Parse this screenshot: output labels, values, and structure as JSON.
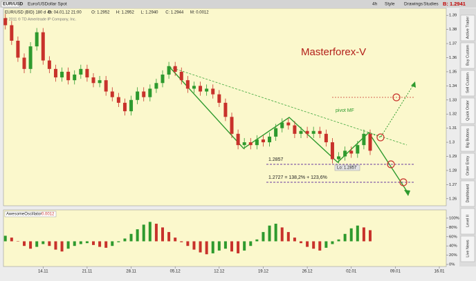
{
  "toolbar": {
    "symbol": "EUR/USD",
    "description": "Euro/USDollar Spot",
    "period": "4h",
    "buttons": [
      "Style",
      "Drawings",
      "Studies"
    ],
    "bid": "B: 1.2941"
  },
  "header": {
    "study": "EUR/USD (BID) 180 d 4h",
    "fields": [
      "D: 04.01.12 21:00",
      "O: 1.2952",
      "H: 1.2952",
      "L: 1.2940",
      "C: 1.2944",
      "M: 0.0012"
    ]
  },
  "copyright": "© 2011 © TD Ameritrade IP Company, Inc.",
  "side_tabs": [
    "Active Trader",
    "Buy Custom",
    "Sell Custom",
    "Quick Order",
    "Big Buttons",
    "Order Entry",
    "Dashboard",
    "Level II",
    "Live News"
  ],
  "chart_data": [
    {
      "type": "candlestick",
      "up_color": "#2e9a2e",
      "down_color": "#c8322b",
      "x": [
        -6,
        -5,
        -4,
        -3,
        -2,
        -1,
        0,
        1,
        2,
        3,
        4,
        5,
        6,
        7,
        8,
        9,
        10,
        11,
        12,
        13,
        14,
        15,
        16,
        17,
        18,
        19,
        20,
        21,
        22,
        23,
        24,
        25,
        26,
        27,
        28,
        29,
        30,
        31,
        32,
        33,
        34,
        35,
        36,
        37,
        38,
        39,
        40,
        41,
        42,
        43,
        44,
        45,
        46,
        47,
        48,
        49,
        50,
        51,
        52
      ],
      "open": [
        1.388,
        1.383,
        1.372,
        1.36,
        1.352,
        1.368,
        1.378,
        1.358,
        1.352,
        1.346,
        1.35,
        1.344,
        1.348,
        1.352,
        1.346,
        1.342,
        1.344,
        1.336,
        1.332,
        1.328,
        1.322,
        1.33,
        1.336,
        1.332,
        1.338,
        1.342,
        1.348,
        1.354,
        1.35,
        1.344,
        1.338,
        1.34,
        1.336,
        1.338,
        1.334,
        1.328,
        1.318,
        1.306,
        1.298,
        1.3,
        1.298,
        1.302,
        1.3,
        1.304,
        1.31,
        1.314,
        1.312,
        1.306,
        1.308,
        1.306,
        1.308,
        1.306,
        1.3,
        1.288,
        1.29,
        1.294,
        1.292,
        1.298,
        1.306
      ],
      "high": [
        1.391,
        1.386,
        1.375,
        1.363,
        1.371,
        1.381,
        1.381,
        1.361,
        1.355,
        1.353,
        1.353,
        1.351,
        1.355,
        1.355,
        1.349,
        1.347,
        1.347,
        1.339,
        1.335,
        1.331,
        1.333,
        1.339,
        1.339,
        1.341,
        1.345,
        1.351,
        1.357,
        1.357,
        1.353,
        1.347,
        1.343,
        1.343,
        1.341,
        1.341,
        1.337,
        1.331,
        1.321,
        1.309,
        1.303,
        1.303,
        1.305,
        1.305,
        1.307,
        1.313,
        1.317,
        1.317,
        1.315,
        1.311,
        1.311,
        1.311,
        1.311,
        1.309,
        1.303,
        1.293,
        1.297,
        1.297,
        1.301,
        1.309,
        1.309
      ],
      "low": [
        1.38,
        1.369,
        1.357,
        1.349,
        1.349,
        1.365,
        1.355,
        1.349,
        1.343,
        1.343,
        1.341,
        1.341,
        1.345,
        1.343,
        1.339,
        1.339,
        1.333,
        1.329,
        1.325,
        1.319,
        1.319,
        1.327,
        1.329,
        1.329,
        1.335,
        1.339,
        1.345,
        1.347,
        1.341,
        1.335,
        1.335,
        1.333,
        1.333,
        1.331,
        1.325,
        1.315,
        1.303,
        1.295,
        1.295,
        1.295,
        1.295,
        1.297,
        1.297,
        1.301,
        1.307,
        1.309,
        1.303,
        1.303,
        1.303,
        1.303,
        1.303,
        1.297,
        1.285,
        1.285,
        1.287,
        1.289,
        1.289,
        1.295,
        1.291
      ],
      "close": [
        1.383,
        1.372,
        1.36,
        1.352,
        1.368,
        1.378,
        1.358,
        1.352,
        1.346,
        1.35,
        1.344,
        1.348,
        1.352,
        1.346,
        1.342,
        1.344,
        1.336,
        1.332,
        1.328,
        1.322,
        1.33,
        1.336,
        1.332,
        1.338,
        1.342,
        1.348,
        1.354,
        1.35,
        1.344,
        1.338,
        1.34,
        1.336,
        1.338,
        1.334,
        1.328,
        1.318,
        1.306,
        1.298,
        1.3,
        1.298,
        1.302,
        1.3,
        1.304,
        1.31,
        1.314,
        1.312,
        1.306,
        1.308,
        1.306,
        1.308,
        1.306,
        1.3,
        1.288,
        1.29,
        1.294,
        1.292,
        1.298,
        1.306,
        1.294
      ],
      "xlim": [
        -6.3,
        64.1
      ],
      "xticks": [
        {
          "value": 0,
          "label": "14.11"
        },
        {
          "value": 7,
          "label": "21.11"
        },
        {
          "value": 14,
          "label": "28.11"
        },
        {
          "value": 21,
          "label": "05.12"
        },
        {
          "value": 28,
          "label": "12.12"
        },
        {
          "value": 35,
          "label": "19.12"
        },
        {
          "value": 42,
          "label": "26.12"
        },
        {
          "value": 49,
          "label": "02.01"
        },
        {
          "value": 56,
          "label": "09.01"
        },
        {
          "value": 63,
          "label": "16.01"
        }
      ],
      "ylim": [
        1.255,
        1.395
      ],
      "yticks": [
        1.26,
        1.27,
        1.28,
        1.29,
        1.3,
        1.31,
        1.32,
        1.33,
        1.34,
        1.35,
        1.36,
        1.37,
        1.38,
        1.39
      ],
      "annotations": [
        "Masterforex-V",
        "pivot MF",
        "1.2857",
        "1.2727 = 138,2% + 123,6%",
        "Lo: 1.2857"
      ]
    },
    {
      "type": "bar",
      "title": "AwesomeOscillator",
      "subtitle": "0.0012",
      "up_color": "#2e9a2e",
      "down_color": "#c8322b",
      "x": [
        -6,
        -5,
        -4,
        -3,
        -2,
        -1,
        0,
        1,
        2,
        3,
        4,
        5,
        6,
        7,
        8,
        9,
        10,
        11,
        12,
        13,
        14,
        15,
        16,
        17,
        18,
        19,
        20,
        21,
        22,
        23,
        24,
        25,
        26,
        27,
        28,
        29,
        30,
        31,
        32,
        33,
        34,
        35,
        36,
        37,
        38,
        39,
        40,
        41,
        42,
        43,
        44,
        45,
        46,
        47,
        48,
        49,
        50,
        51,
        52
      ],
      "values": [
        62,
        58,
        50,
        40,
        34,
        38,
        44,
        40,
        32,
        28,
        34,
        40,
        44,
        46,
        42,
        38,
        36,
        40,
        48,
        56,
        66,
        76,
        86,
        92,
        88,
        80,
        70,
        58,
        48,
        40,
        32,
        26,
        22,
        24,
        30,
        34,
        28,
        24,
        30,
        40,
        54,
        70,
        84,
        88,
        80,
        70,
        58,
        46,
        38,
        34,
        30,
        36,
        44,
        54,
        66,
        78,
        84,
        80,
        74
      ],
      "ylim": [
        0,
        100
      ],
      "yticks": [
        {
          "value": 100,
          "label": "100%"
        },
        {
          "value": 80,
          "label": "80%"
        },
        {
          "value": 60,
          "label": "60%"
        },
        {
          "value": 40,
          "label": "40%"
        },
        {
          "value": 20,
          "label": "20%"
        },
        {
          "value": 0,
          "label": "0%"
        }
      ]
    }
  ]
}
